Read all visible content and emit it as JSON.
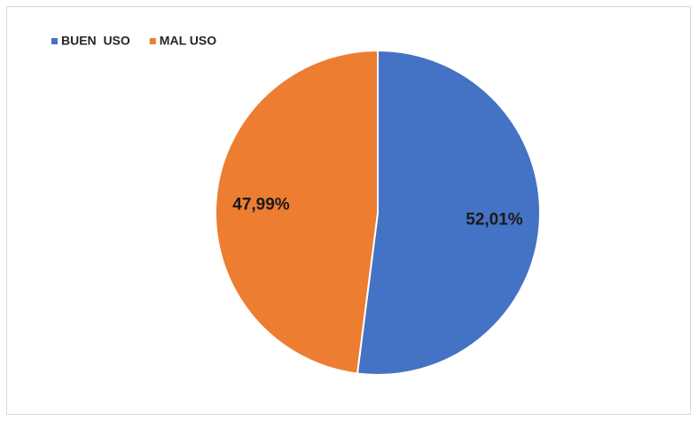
{
  "chart_data": {
    "type": "pie",
    "categories": [
      "BUEN  USO",
      "MAL USO"
    ],
    "values": [
      52.01,
      47.99
    ],
    "value_labels": [
      "52,01%",
      "47,99%"
    ],
    "colors": [
      "#4472c4",
      "#ed7d31"
    ],
    "legend": "top-left"
  }
}
